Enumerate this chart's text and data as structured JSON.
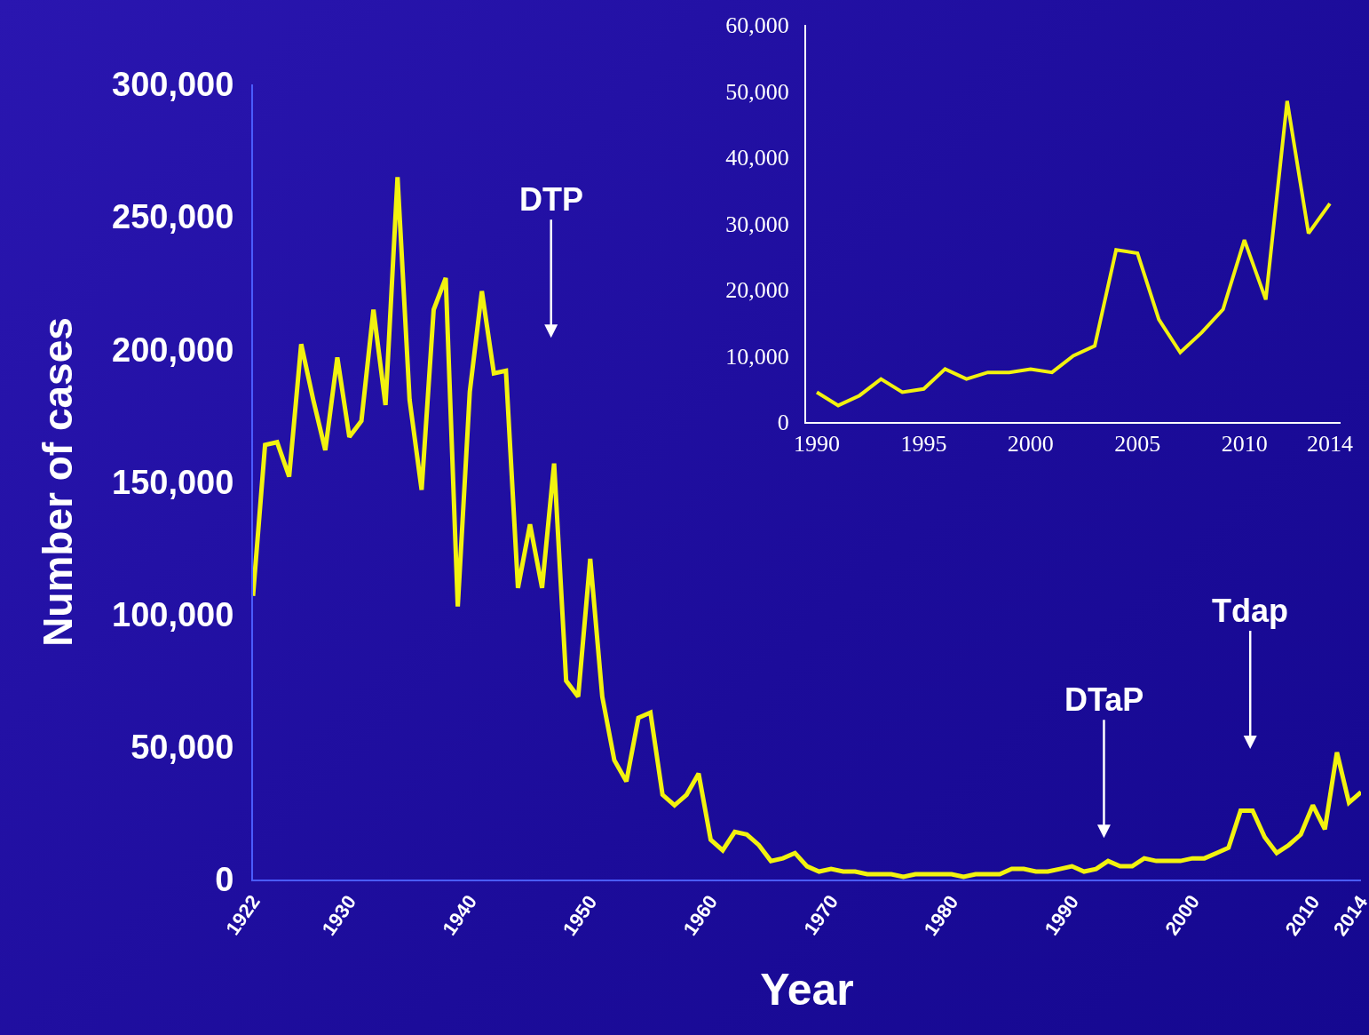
{
  "chart_data": [
    {
      "type": "line",
      "xlabel": "Year",
      "ylabel": "Number of cases",
      "x": [
        1922,
        1923,
        1924,
        1925,
        1926,
        1927,
        1928,
        1929,
        1930,
        1931,
        1932,
        1933,
        1934,
        1935,
        1936,
        1937,
        1938,
        1939,
        1940,
        1941,
        1942,
        1943,
        1944,
        1945,
        1946,
        1947,
        1948,
        1949,
        1950,
        1951,
        1952,
        1953,
        1954,
        1955,
        1956,
        1957,
        1958,
        1959,
        1960,
        1961,
        1962,
        1963,
        1964,
        1965,
        1966,
        1967,
        1968,
        1969,
        1970,
        1971,
        1972,
        1973,
        1974,
        1975,
        1976,
        1977,
        1978,
        1979,
        1980,
        1981,
        1982,
        1983,
        1984,
        1985,
        1986,
        1987,
        1988,
        1989,
        1990,
        1991,
        1992,
        1993,
        1994,
        1995,
        1996,
        1997,
        1998,
        1999,
        2000,
        2001,
        2002,
        2003,
        2004,
        2005,
        2006,
        2007,
        2008,
        2009,
        2010,
        2011,
        2012,
        2013,
        2014
      ],
      "series": [
        {
          "color": "#f2f20f",
          "values": [
            107000,
            164000,
            165000,
            152000,
            202000,
            181000,
            162000,
            197000,
            167000,
            173000,
            215000,
            179000,
            265000,
            181000,
            147000,
            215000,
            227000,
            103000,
            184000,
            222000,
            191000,
            192000,
            110000,
            134000,
            110000,
            157000,
            75000,
            69000,
            121000,
            69000,
            45000,
            37000,
            61000,
            63000,
            32000,
            28000,
            32000,
            40000,
            15000,
            11000,
            18000,
            17000,
            13000,
            7000,
            8000,
            10000,
            5000,
            3000,
            4000,
            3000,
            3000,
            2000,
            2000,
            2000,
            1000,
            2000,
            2000,
            2000,
            2000,
            1000,
            2000,
            2000,
            2000,
            4000,
            4000,
            3000,
            3000,
            4000,
            5000,
            3000,
            4000,
            7000,
            5000,
            5000,
            8000,
            7000,
            7000,
            7000,
            8000,
            8000,
            10000,
            12000,
            26000,
            26000,
            16000,
            10000,
            13000,
            17000,
            28000,
            19000,
            48000,
            29000,
            33000
          ]
        }
      ],
      "xlim": [
        1922,
        2014
      ],
      "xticks": [
        1922,
        1930,
        1940,
        1950,
        1960,
        1970,
        1980,
        1990,
        2000,
        2010,
        2014
      ],
      "ylim": [
        0,
        300000
      ],
      "yticks": [
        0,
        {
          "value": 50000,
          "label": "50,000"
        },
        {
          "value": 100000,
          "label": "100,000"
        },
        {
          "value": 150000,
          "label": "150,000"
        },
        {
          "value": 200000,
          "label": "200,000"
        },
        {
          "value": 250000,
          "label": "250,000"
        },
        {
          "value": 300000,
          "label": "300,000"
        }
      ],
      "annotations": [
        "DTP",
        "DTaP",
        "Tdap"
      ]
    },
    {
      "type": "line",
      "x": [
        1990,
        1991,
        1992,
        1993,
        1994,
        1995,
        1996,
        1997,
        1998,
        1999,
        2000,
        2001,
        2002,
        2003,
        2004,
        2005,
        2006,
        2007,
        2008,
        2009,
        2010,
        2011,
        2012,
        2013,
        2014
      ],
      "series": [
        {
          "color": "#f2f20f",
          "values": [
            4500,
            2500,
            4000,
            6500,
            4500,
            5000,
            8000,
            6500,
            7500,
            7500,
            8000,
            7500,
            10000,
            11500,
            26000,
            25500,
            15500,
            10500,
            13500,
            17000,
            27500,
            18500,
            48500,
            28500,
            33000
          ]
        }
      ],
      "xlim": [
        1989.5,
        2014.5
      ],
      "xticks": [
        1990,
        1995,
        2000,
        2005,
        2010,
        2014
      ],
      "ylim": [
        0,
        60000
      ],
      "yticks": [
        0,
        {
          "value": 10000,
          "label": "10,000"
        },
        {
          "value": 20000,
          "label": "20,000"
        },
        {
          "value": 30000,
          "label": "30,000"
        },
        {
          "value": 40000,
          "label": "40,000"
        },
        {
          "value": 50000,
          "label": "50,000"
        },
        {
          "value": 60000,
          "label": "60,000"
        }
      ]
    }
  ]
}
